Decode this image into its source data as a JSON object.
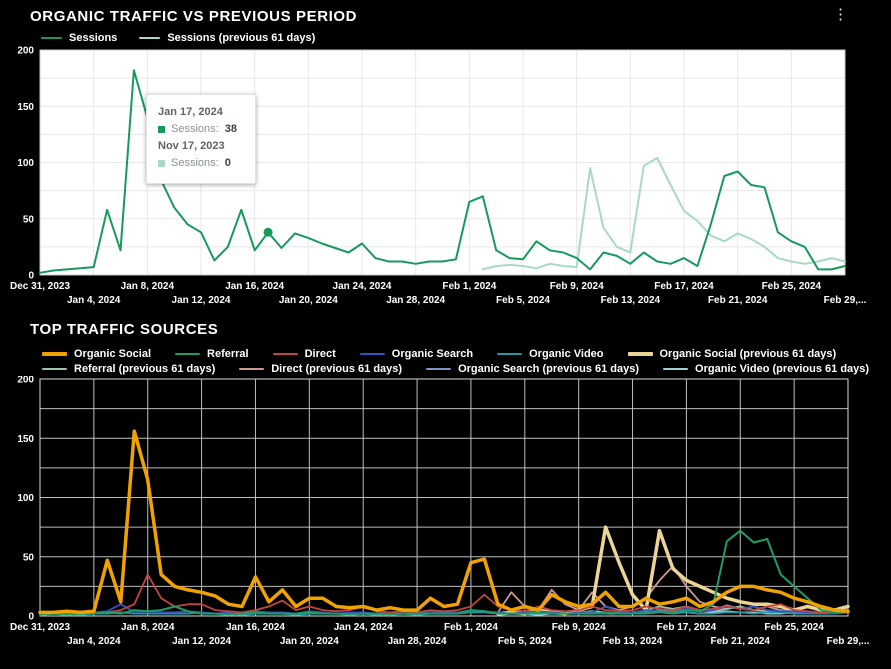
{
  "icons": {
    "kebab_menu": "⋮"
  },
  "tooltip": {
    "date_current": "Jan 17, 2024",
    "current_label": "Sessions:",
    "current_value": "38",
    "date_previous": "Nov 17, 2023",
    "previous_label": "Sessions:",
    "previous_value": "0"
  },
  "chart_data": [
    {
      "type": "line",
      "title": "ORGANIC TRAFFIC VS PREVIOUS PERIOD",
      "ylim": [
        0,
        200
      ],
      "y_ticks": [
        0,
        50,
        100,
        150,
        200
      ],
      "grid_y_step": 25,
      "grid_x_step_days": 4,
      "grid": true,
      "legend_position": "top-left",
      "plot_bg": "#ffffff",
      "grid_color": "#e7e7e7",
      "border_color": "#c9c9c9",
      "label_color": "#ffffff",
      "x_ticks": {
        "row1_days": [
          0,
          8,
          16,
          24,
          32,
          40,
          48,
          56
        ],
        "row1_labels": [
          "Dec 31, 2023",
          "Jan 8, 2024",
          "Jan 16, 2024",
          "Jan 24, 2024",
          "Feb 1, 2024",
          "Feb 9, 2024",
          "Feb 17, 2024",
          "Feb 25, 2024"
        ],
        "row2_days": [
          4,
          12,
          20,
          28,
          36,
          44,
          52,
          60
        ],
        "row2_labels": [
          "Jan 4, 2024",
          "Jan 12, 2024",
          "Jan 20, 2024",
          "Jan 28, 2024",
          "Feb 5, 2024",
          "Feb 13, 2024",
          "Feb 21, 2024",
          "Feb 29,..."
        ]
      },
      "series": [
        {
          "name": "Sessions",
          "color": "#17995E",
          "width": 2,
          "values": [
            2,
            4,
            5,
            6,
            7,
            58,
            22,
            182,
            140,
            85,
            60,
            45,
            38,
            13,
            25,
            58,
            22,
            38,
            24,
            37,
            33,
            28,
            24,
            20,
            28,
            15,
            12,
            12,
            10,
            12,
            12,
            14,
            65,
            70,
            22,
            15,
            14,
            30,
            22,
            20,
            15,
            5,
            20,
            17,
            10,
            20,
            12,
            10,
            15,
            8,
            45,
            88,
            92,
            80,
            78,
            38,
            30,
            25,
            5,
            5,
            8
          ]
        },
        {
          "name": "Sessions (previous 61 days)",
          "color": "#A8D9C2",
          "width": 2,
          "values": [
            null,
            null,
            null,
            null,
            null,
            null,
            null,
            null,
            null,
            null,
            null,
            null,
            null,
            null,
            null,
            null,
            null,
            null,
            null,
            null,
            null,
            null,
            null,
            null,
            null,
            null,
            null,
            null,
            null,
            null,
            null,
            null,
            null,
            5,
            8,
            9,
            8,
            6,
            10,
            8,
            7,
            95,
            42,
            25,
            20,
            97,
            104,
            80,
            57,
            48,
            35,
            30,
            37,
            32,
            25,
            15,
            12,
            10,
            12,
            15,
            12
          ]
        }
      ],
      "marker": {
        "series_index": 0,
        "x_index": 17,
        "value": 38
      }
    },
    {
      "type": "line",
      "title": "TOP TRAFFIC SOURCES",
      "ylim": [
        0,
        200
      ],
      "y_ticks": [
        0,
        50,
        100,
        150,
        200
      ],
      "grid_y_step": 25,
      "grid_x_step_days": 4,
      "grid": true,
      "legend_position": "top-left",
      "plot_bg": "#000000",
      "grid_color": "#bdbdbd",
      "border_color": "#dadada",
      "label_color": "#ffffff",
      "x_ticks": {
        "row1_days": [
          0,
          8,
          16,
          24,
          32,
          40,
          48,
          56
        ],
        "row1_labels": [
          "Dec 31, 2023",
          "Jan 8, 2024",
          "Jan 16, 2024",
          "Jan 24, 2024",
          "Feb 1, 2024",
          "Feb 9, 2024",
          "Feb 17, 2024",
          "Feb 25, 2024"
        ],
        "row2_days": [
          4,
          12,
          20,
          28,
          36,
          44,
          52,
          60
        ],
        "row2_labels": [
          "Jan 4, 2024",
          "Jan 12, 2024",
          "Jan 20, 2024",
          "Jan 28, 2024",
          "Feb 5, 2024",
          "Feb 13, 2024",
          "Feb 21, 2024",
          "Feb 29,..."
        ]
      },
      "series": [
        {
          "name": "Organic Social",
          "color": "#F0A202",
          "width": 3.5,
          "values": [
            3,
            3,
            4,
            3,
            4,
            47,
            12,
            156,
            115,
            35,
            25,
            22,
            20,
            17,
            10,
            8,
            33,
            12,
            22,
            8,
            15,
            15,
            8,
            7,
            8,
            5,
            7,
            5,
            5,
            15,
            8,
            10,
            45,
            48,
            10,
            5,
            8,
            5,
            18,
            12,
            8,
            10,
            20,
            8,
            8,
            15,
            10,
            12,
            15,
            8,
            12,
            20,
            25,
            25,
            22,
            20,
            15,
            12,
            8,
            5,
            4
          ]
        },
        {
          "name": "Referral",
          "color": "#1D9E63",
          "width": 2,
          "values": [
            1,
            2,
            1,
            2,
            2,
            3,
            2,
            5,
            4,
            5,
            8,
            4,
            2,
            2,
            1,
            2,
            3,
            2,
            2,
            2,
            3,
            2,
            2,
            1,
            2,
            2,
            1,
            2,
            2,
            2,
            2,
            2,
            5,
            4,
            2,
            2,
            2,
            3,
            2,
            2,
            2,
            2,
            3,
            2,
            2,
            3,
            4,
            3,
            5,
            4,
            10,
            63,
            72,
            62,
            65,
            35,
            25,
            15,
            5,
            3,
            3
          ]
        },
        {
          "name": "Direct",
          "color": "#C14540",
          "width": 1.8,
          "values": [
            2,
            2,
            2,
            2,
            2,
            3,
            5,
            10,
            35,
            15,
            8,
            10,
            10,
            5,
            4,
            3,
            5,
            8,
            13,
            5,
            8,
            5,
            4,
            5,
            8,
            4,
            3,
            4,
            3,
            5,
            4,
            5,
            8,
            18,
            8,
            5,
            4,
            8,
            5,
            4,
            5,
            8,
            5,
            4,
            5,
            8,
            6,
            5,
            8,
            5,
            6,
            8,
            6,
            5,
            8,
            10,
            5,
            4,
            3,
            3,
            3
          ]
        },
        {
          "name": "Organic Search",
          "color": "#3552C2",
          "width": 1.8,
          "values": [
            2,
            3,
            2,
            2,
            3,
            4,
            10,
            3,
            4,
            3,
            3,
            4,
            3,
            2,
            3,
            2,
            4,
            3,
            3,
            2,
            4,
            3,
            2,
            3,
            3,
            2,
            3,
            2,
            2,
            4,
            3,
            3,
            5,
            4,
            3,
            2,
            3,
            4,
            3,
            2,
            3,
            3,
            8,
            4,
            3,
            5,
            4,
            3,
            6,
            4,
            5,
            8,
            6,
            8,
            5,
            4,
            4,
            3,
            3,
            2,
            3
          ]
        },
        {
          "name": "Organic Video",
          "color": "#2097A3",
          "width": 1.8,
          "values": [
            1,
            2,
            2,
            1,
            2,
            2,
            3,
            2,
            2,
            2,
            2,
            2,
            3,
            2,
            2,
            1,
            2,
            2,
            2,
            1,
            2,
            2,
            2,
            2,
            2,
            1,
            2,
            2,
            1,
            2,
            2,
            2,
            3,
            3,
            2,
            2,
            2,
            2,
            3,
            2,
            2,
            2,
            2,
            3,
            2,
            2,
            3,
            2,
            3,
            2,
            2,
            3,
            3,
            2,
            3,
            3,
            2,
            2,
            2,
            2,
            3
          ]
        },
        {
          "name": "Organic Social (previous 61 days)",
          "color": "#EBD496",
          "width": 3.5,
          "values": [
            null,
            null,
            null,
            null,
            null,
            null,
            null,
            null,
            null,
            null,
            null,
            null,
            null,
            null,
            null,
            null,
            null,
            null,
            null,
            null,
            null,
            null,
            null,
            null,
            null,
            null,
            null,
            null,
            null,
            null,
            null,
            null,
            null,
            null,
            2,
            3,
            2,
            5,
            3,
            2,
            5,
            8,
            75,
            45,
            18,
            5,
            72,
            40,
            30,
            25,
            20,
            15,
            12,
            10,
            10,
            8,
            5,
            8,
            5,
            5,
            8
          ]
        },
        {
          "name": "Referral (previous 61 days)",
          "color": "#9CC2AB",
          "width": 1.8,
          "values": [
            null,
            null,
            null,
            null,
            null,
            null,
            null,
            null,
            null,
            null,
            null,
            null,
            null,
            null,
            null,
            null,
            null,
            null,
            null,
            null,
            null,
            null,
            null,
            null,
            null,
            null,
            null,
            null,
            null,
            null,
            null,
            null,
            null,
            null,
            2,
            3,
            2,
            2,
            3,
            2,
            3,
            4,
            3,
            2,
            3,
            5,
            8,
            6,
            8,
            5,
            4,
            6,
            8,
            5,
            4,
            3,
            4,
            3,
            3,
            4,
            5
          ]
        },
        {
          "name": "Direct (previous 61 days)",
          "color": "#CC9A92",
          "width": 1.8,
          "values": [
            null,
            null,
            null,
            null,
            null,
            null,
            null,
            null,
            null,
            null,
            null,
            null,
            null,
            null,
            null,
            null,
            null,
            null,
            null,
            null,
            null,
            null,
            null,
            null,
            null,
            null,
            null,
            null,
            null,
            null,
            null,
            null,
            null,
            null,
            3,
            20,
            8,
            5,
            22,
            10,
            5,
            20,
            8,
            5,
            8,
            15,
            30,
            42,
            25,
            12,
            8,
            6,
            8,
            5,
            8,
            5,
            5,
            8,
            5,
            4,
            5
          ]
        },
        {
          "name": "Organic Search (previous 61 days)",
          "color": "#8093C6",
          "width": 1.8,
          "values": [
            null,
            null,
            null,
            null,
            null,
            null,
            null,
            null,
            null,
            null,
            null,
            null,
            null,
            null,
            null,
            null,
            null,
            null,
            null,
            null,
            null,
            null,
            null,
            null,
            null,
            null,
            null,
            null,
            null,
            null,
            null,
            null,
            null,
            null,
            2,
            2,
            3,
            2,
            2,
            3,
            2,
            4,
            3,
            2,
            3,
            4,
            5,
            4,
            6,
            4,
            5,
            9,
            6,
            8,
            5,
            4,
            3,
            3,
            2,
            3,
            4
          ]
        },
        {
          "name": "Organic Video (previous 61 days)",
          "color": "#9FD0D6",
          "width": 1.8,
          "values": [
            null,
            null,
            null,
            null,
            null,
            null,
            null,
            null,
            null,
            null,
            null,
            null,
            null,
            null,
            null,
            null,
            null,
            null,
            null,
            null,
            null,
            null,
            null,
            null,
            null,
            null,
            null,
            null,
            null,
            null,
            null,
            null,
            null,
            null,
            1,
            2,
            2,
            1,
            2,
            2,
            2,
            3,
            2,
            2,
            2,
            3,
            4,
            3,
            3,
            2,
            3,
            4,
            3,
            3,
            2,
            2,
            3,
            2,
            2,
            3,
            4
          ]
        }
      ]
    }
  ]
}
